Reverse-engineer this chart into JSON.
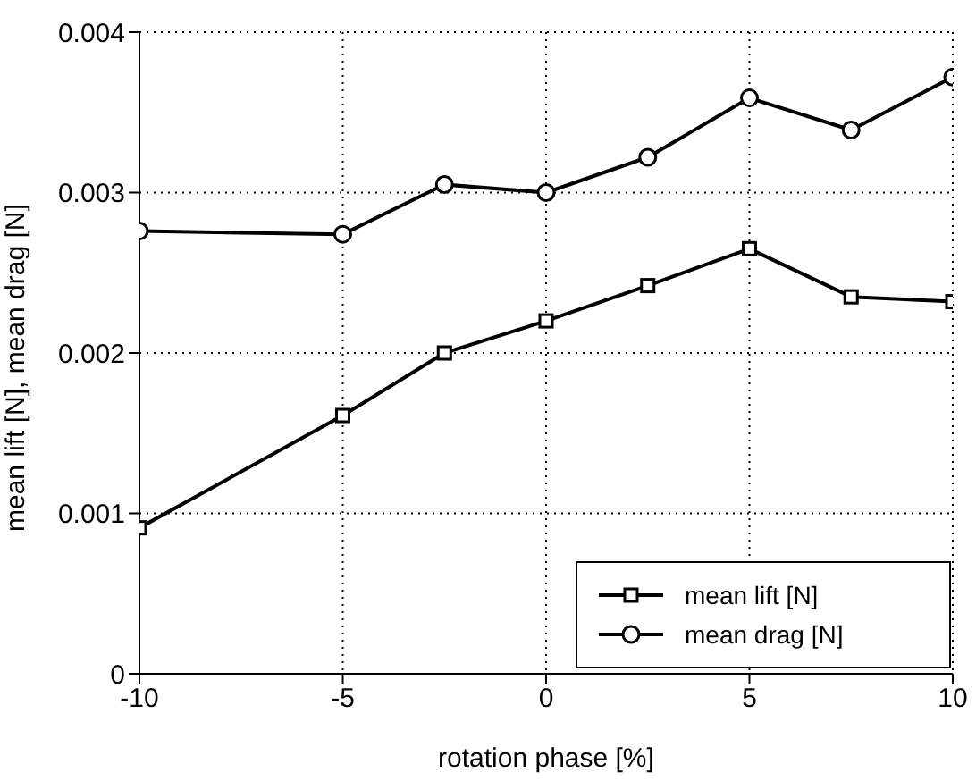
{
  "chart_data": {
    "type": "line",
    "xlabel": "rotation phase [%]",
    "ylabel": "mean lift [N], mean drag [N]",
    "x": [
      -10,
      -5,
      -2.5,
      0,
      2.5,
      5,
      7.5,
      10
    ],
    "series": [
      {
        "name": "mean lift [N]",
        "color": "#000000",
        "marker": "square",
        "values": [
          0.00091,
          0.00161,
          0.002,
          0.0022,
          0.00242,
          0.00265,
          0.00235,
          0.00232
        ]
      },
      {
        "name": "mean drag [N]",
        "color": "#000000",
        "marker": "circle",
        "values": [
          0.00276,
          0.00274,
          0.00305,
          0.003,
          0.00322,
          0.00359,
          0.00339,
          0.00372
        ]
      }
    ],
    "xlim": [
      -10,
      10
    ],
    "xticks": [
      -10,
      -5,
      0,
      5,
      10
    ],
    "ylim": [
      0,
      0.004
    ],
    "yticks": [
      0,
      0.001,
      0.002,
      0.003,
      0.004
    ],
    "grid": true,
    "line_style": "solid",
    "legend": "bottom right"
  }
}
